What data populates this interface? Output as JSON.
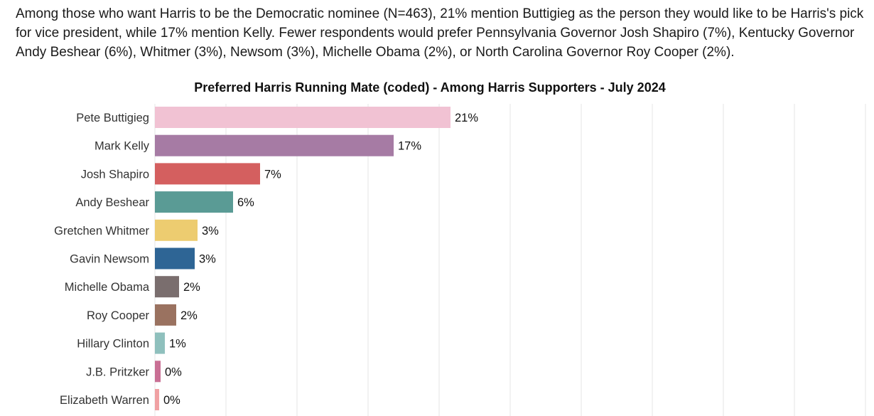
{
  "intro_text": "Among those who want Harris to be the Democratic nominee (N=463), 21% mention Buttigieg as the person they would like to be Harris's pick for vice president, while 17% mention Kelly. Fewer respondents would prefer Pennsylvania Governor Josh Shapiro (7%), Kentucky Governor Andy Beshear (6%), Whitmer (3%), Newsom (3%), Michelle Obama (2%), or North Carolina Governor Roy Cooper (2%).",
  "chart_data": {
    "type": "bar",
    "orientation": "horizontal",
    "title": "Preferred Harris Running Mate (coded) - Among Harris Supporters - July 2024",
    "xlabel": "",
    "ylabel": "",
    "xlim": [
      0,
      50
    ],
    "grid": true,
    "categories": [
      "Pete Buttigieg",
      "Mark Kelly",
      "Josh Shapiro",
      "Andy Beshear",
      "Gretchen Whitmer",
      "Gavin Newsom",
      "Michelle Obama",
      "Roy Cooper",
      "Hillary Clinton",
      "J.B. Pritzker",
      "Elizabeth Warren"
    ],
    "values": [
      21,
      17,
      7,
      6,
      3,
      3,
      2,
      2,
      1,
      0,
      0
    ],
    "bar_values": [
      20.8,
      16.8,
      7.4,
      5.5,
      3.0,
      2.8,
      1.7,
      1.5,
      0.7,
      0.4,
      0.3
    ],
    "value_labels": [
      "21%",
      "17%",
      "7%",
      "6%",
      "3%",
      "3%",
      "2%",
      "2%",
      "1%",
      "0%",
      "0%"
    ],
    "colors": [
      "#f1c2d3",
      "#a67ba4",
      "#d45f5f",
      "#5a9b95",
      "#edcc70",
      "#2e6595",
      "#7a6e6e",
      "#9a7260",
      "#8fc0bd",
      "#c96f94",
      "#f0a1a3"
    ]
  }
}
